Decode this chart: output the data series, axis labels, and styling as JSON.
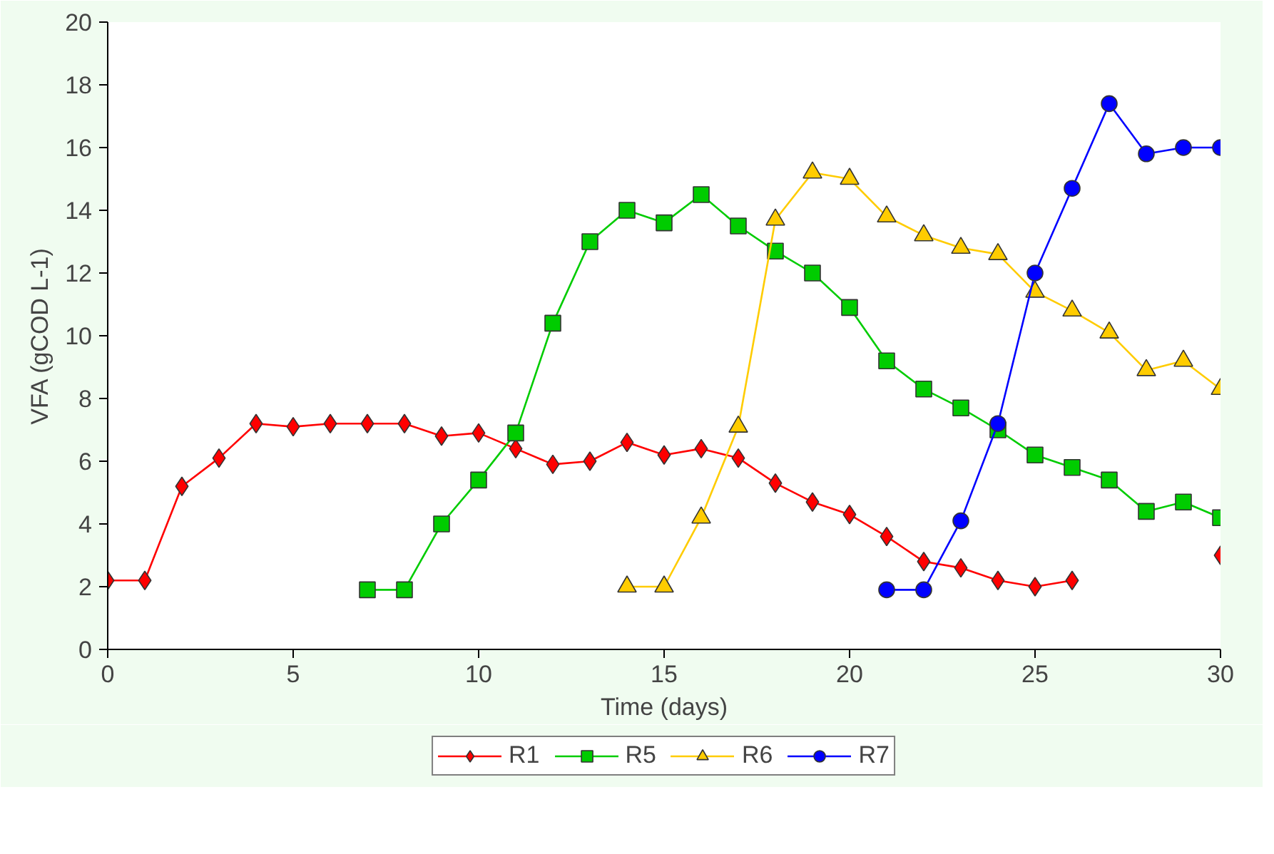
{
  "chart_data": {
    "type": "line",
    "xlabel": "Time (days)",
    "ylabel": "VFA (gCOD L-1)",
    "xlim": [
      0,
      30
    ],
    "ylim": [
      0,
      20
    ],
    "xticks": [
      0,
      5,
      10,
      15,
      20,
      25,
      30
    ],
    "yticks": [
      0,
      2,
      4,
      6,
      8,
      10,
      12,
      14,
      16,
      18,
      20
    ],
    "grid": false,
    "legend": "bottom",
    "line_style": "solid",
    "series": [
      {
        "name": "R1",
        "color": "#ff0000",
        "marker": "diamond",
        "x": [
          0,
          1,
          2,
          3,
          4,
          5,
          6,
          7,
          8,
          9,
          10,
          11,
          12,
          13,
          14,
          15,
          16,
          17,
          18,
          19,
          20,
          21,
          22,
          23,
          24,
          25,
          26,
          27,
          28,
          29,
          30
        ],
        "values": [
          2.2,
          2.2,
          5.2,
          6.1,
          7.2,
          7.1,
          7.2,
          7.2,
          7.2,
          6.8,
          6.9,
          6.4,
          5.9,
          6.0,
          6.6,
          6.2,
          6.4,
          6.1,
          5.3,
          4.7,
          4.3,
          3.6,
          2.8,
          2.6,
          2.2,
          2.0,
          2.2,
          null,
          null,
          null,
          3.0
        ]
      },
      {
        "name": "R5",
        "color": "#00cc00",
        "marker": "square",
        "x": [
          7,
          8,
          9,
          10,
          11,
          12,
          13,
          14,
          15,
          16,
          17,
          18,
          19,
          20,
          21,
          22,
          23,
          24,
          25,
          26,
          27,
          28,
          29,
          30
        ],
        "values": [
          1.9,
          1.9,
          4.0,
          5.4,
          6.9,
          10.4,
          13.0,
          14.0,
          13.6,
          14.5,
          13.5,
          12.7,
          12.0,
          10.9,
          9.2,
          8.3,
          7.7,
          7.0,
          6.2,
          5.8,
          5.4,
          4.4,
          4.7,
          4.2
        ]
      },
      {
        "name": "R6",
        "color": "#ffcc00",
        "marker": "triangle",
        "x": [
          14,
          15,
          16,
          17,
          18,
          19,
          20,
          21,
          22,
          23,
          24,
          25,
          26,
          27,
          28,
          29,
          30
        ],
        "values": [
          2.0,
          2.0,
          4.2,
          7.1,
          13.7,
          15.2,
          15.0,
          13.8,
          13.2,
          12.8,
          12.6,
          11.4,
          10.8,
          10.1,
          8.9,
          9.2,
          8.3
        ]
      },
      {
        "name": "R7",
        "color": "#0000ff",
        "marker": "circle",
        "x": [
          21,
          22,
          23,
          24,
          25,
          26,
          27,
          28,
          29,
          30
        ],
        "values": [
          1.9,
          1.9,
          4.1,
          7.2,
          12.0,
          14.7,
          17.4,
          15.8,
          16.0,
          16.0
        ]
      }
    ]
  }
}
